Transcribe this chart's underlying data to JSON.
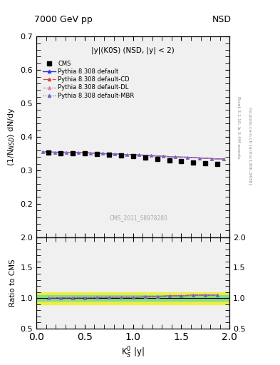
{
  "title_left": "7000 GeV pp",
  "title_right": "NSD",
  "annotation": "|y|(K0S) (NSD, |y| < 2)",
  "watermark": "CMS_2011_S8978280",
  "right_label1": "Rivet 3.1.10, ≥ 3.4M events",
  "right_label2": "mcplots.cern.ch [arXiv:1306.3436]",
  "ylabel_main": "(1/N$_{NSD}$) dN/dy",
  "ylabel_ratio": "Ratio to CMS",
  "xlabel": "K$^0_S$ |y|",
  "xlim": [
    0,
    2
  ],
  "ylim_main": [
    0.1,
    0.7
  ],
  "ylim_ratio": [
    0.5,
    2.0
  ],
  "yticks_main": [
    0.2,
    0.3,
    0.4,
    0.5,
    0.6,
    0.7
  ],
  "yticks_ratio": [
    0.5,
    1.0,
    1.5,
    2.0
  ],
  "cms_x": [
    0.125,
    0.25,
    0.375,
    0.5,
    0.625,
    0.75,
    0.875,
    1.0,
    1.125,
    1.25,
    1.375,
    1.5,
    1.625,
    1.75,
    1.875
  ],
  "cms_y": [
    0.353,
    0.352,
    0.351,
    0.35,
    0.348,
    0.346,
    0.344,
    0.342,
    0.338,
    0.334,
    0.33,
    0.327,
    0.323,
    0.321,
    0.318
  ],
  "py_x": [
    0.0625,
    0.1875,
    0.3125,
    0.4375,
    0.5625,
    0.6875,
    0.8125,
    0.9375,
    1.0625,
    1.1875,
    1.3125,
    1.4375,
    1.5625,
    1.6875,
    1.8125,
    1.9375
  ],
  "py_default_y": [
    0.356,
    0.354,
    0.354,
    0.353,
    0.352,
    0.35,
    0.349,
    0.347,
    0.346,
    0.344,
    0.342,
    0.34,
    0.339,
    0.337,
    0.335,
    0.334
  ],
  "py_cd_y": [
    0.356,
    0.354,
    0.354,
    0.353,
    0.352,
    0.35,
    0.349,
    0.347,
    0.346,
    0.344,
    0.342,
    0.34,
    0.339,
    0.337,
    0.335,
    0.334
  ],
  "py_dl_y": [
    0.356,
    0.354,
    0.354,
    0.353,
    0.352,
    0.35,
    0.349,
    0.347,
    0.346,
    0.344,
    0.342,
    0.34,
    0.339,
    0.337,
    0.335,
    0.334
  ],
  "py_mbr_y": [
    0.356,
    0.354,
    0.354,
    0.353,
    0.352,
    0.35,
    0.349,
    0.347,
    0.346,
    0.344,
    0.342,
    0.34,
    0.339,
    0.337,
    0.335,
    0.334
  ],
  "color_default": "#3333dd",
  "color_cd": "#dd4444",
  "color_dl": "#dd88aa",
  "color_mbr": "#6666cc",
  "green_band": 0.05,
  "yellow_band": 0.1,
  "green_color": "#88dd88",
  "yellow_color": "#eeee44",
  "bg_color": "#f0f0f0"
}
